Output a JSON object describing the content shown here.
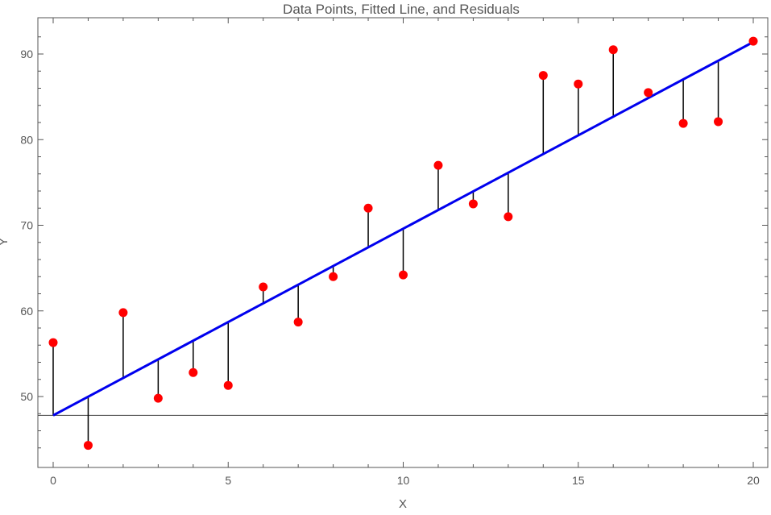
{
  "chart_data": {
    "type": "scatter",
    "title": "Data Points, Fitted Line, and Residuals",
    "xlabel": "X",
    "ylabel": "Y",
    "xlim": [
      0,
      20
    ],
    "ylim": [
      42,
      94
    ],
    "x_ticks": [
      0,
      5,
      10,
      15,
      20
    ],
    "y_ticks": [
      50,
      60,
      70,
      80,
      90
    ],
    "grid": false,
    "baseline_y": 47.8,
    "fit_line": {
      "intercept": 47.8,
      "slope": 2.18
    },
    "series": [
      {
        "x": [
          0,
          1,
          2,
          3,
          4,
          5,
          6,
          7,
          8,
          9,
          10,
          11,
          12,
          13,
          14,
          15,
          16,
          17,
          18,
          19,
          20
        ],
        "y": [
          56.3,
          44.3,
          59.8,
          49.8,
          52.8,
          51.3,
          62.8,
          58.7,
          64.0,
          72.0,
          64.2,
          77.0,
          72.5,
          71.0,
          87.5,
          86.5,
          90.5,
          85.5,
          81.9,
          82.1,
          91.5
        ]
      }
    ],
    "colors": {
      "points": "#ff0000",
      "fit_line": "#0000ee",
      "residuals": "#000000",
      "frame": "#555555"
    }
  }
}
